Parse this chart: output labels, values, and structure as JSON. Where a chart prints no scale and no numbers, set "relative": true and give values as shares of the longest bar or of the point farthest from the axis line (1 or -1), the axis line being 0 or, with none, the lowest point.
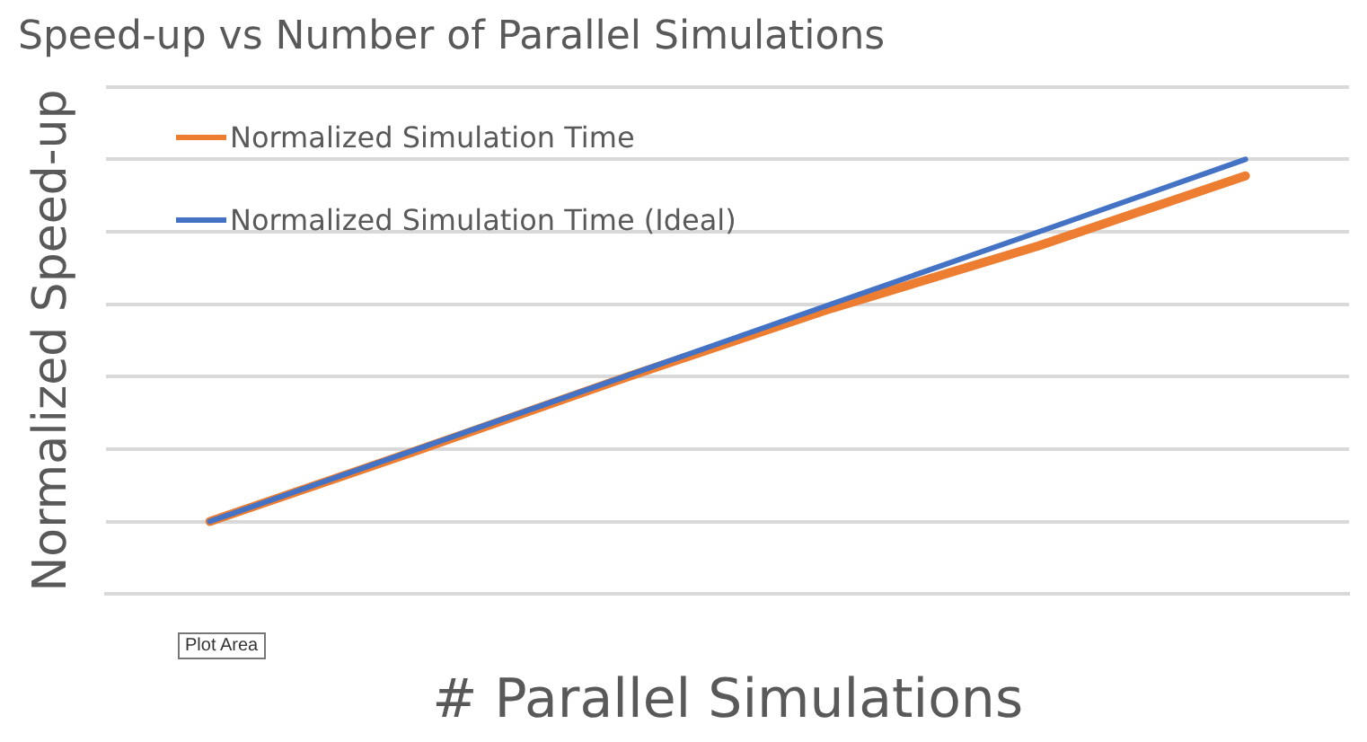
{
  "chart_data": {
    "type": "line",
    "title": "Speed-up vs Number of Parallel Simulations",
    "xlabel": "# Parallel Simulations",
    "ylabel": "Normalized Speed-up",
    "relative": true,
    "categories": [
      null,
      null,
      null,
      null,
      null,
      null
    ],
    "series": [
      {
        "name": "Normalized Simulation Time",
        "color": "#ed7d31",
        "values": [
          0.167,
          0.33,
          0.497,
          0.657,
          0.801,
          0.962
        ]
      },
      {
        "name": "Normalized Simulation Time (Ideal)",
        "color": "#4472c4",
        "values": [
          0.167,
          0.333,
          0.5,
          0.667,
          0.833,
          1
        ]
      }
    ],
    "grid": "y",
    "legend": "top left",
    "marker": "none",
    "line_style": "solid",
    "annotations": [
      "Plot Area"
    ]
  }
}
